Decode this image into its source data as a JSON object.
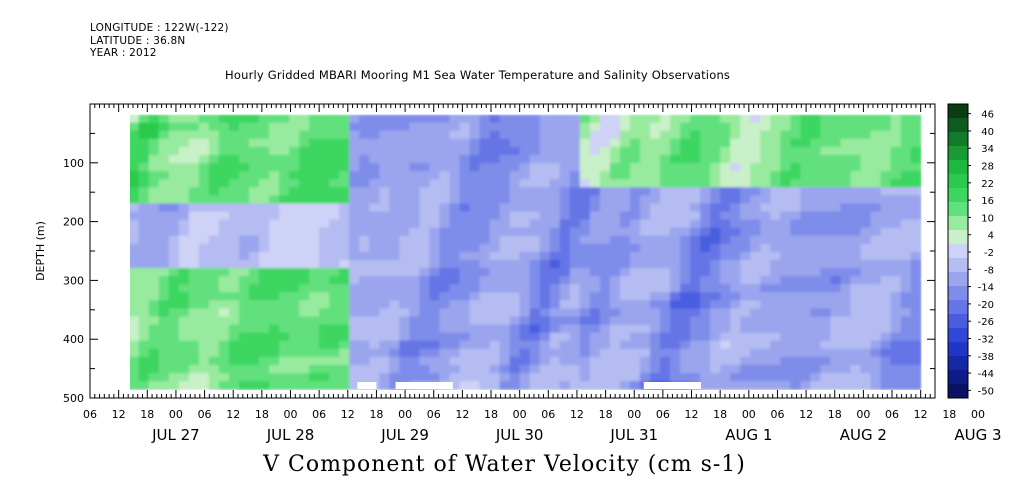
{
  "header": {
    "longitude": "LONGITUDE : 122W(-122)",
    "latitude": "LATITUDE : 36.8N",
    "year": "YEAR : 2012"
  },
  "chart_title": "Hourly Gridded MBARI Mooring M1 Sea Water Temperature and Salinity Observations",
  "variable_title": "V Component of Water Velocity (cm s-1)",
  "chart_data": {
    "type": "heatmap",
    "title": "Hourly Gridded MBARI Mooring M1 Sea Water Temperature and Salinity Observations",
    "xlabel": "",
    "ylabel": "DEPTH (m)",
    "ylim": [
      500,
      0
    ],
    "y_ticks": [
      100,
      200,
      300,
      400,
      500
    ],
    "y_tick_labels": [
      "100",
      "200",
      "300",
      "400",
      "500"
    ],
    "x_range_hours": [
      -18,
      159
    ],
    "x_hour_tick_labels": [
      "06",
      "12",
      "18",
      "00",
      "06",
      "12",
      "18",
      "00",
      "06",
      "12",
      "18",
      "00",
      "06",
      "12",
      "18",
      "00",
      "06",
      "12",
      "18",
      "00",
      "06",
      "12",
      "18",
      "00",
      "06",
      "12",
      "18",
      "00",
      "06",
      "12",
      "18",
      "00"
    ],
    "x_day_labels": [
      "JUL 27",
      "JUL 28",
      "JUL 29",
      "JUL 30",
      "JUL 31",
      "AUG  1",
      "AUG  2",
      "AUG  3"
    ],
    "data_depth_range": [
      18,
      485
    ],
    "colorbar": {
      "levels": [
        46,
        40,
        34,
        28,
        22,
        16,
        10,
        4,
        -2,
        -8,
        -14,
        -20,
        -26,
        -32,
        -38,
        -44,
        -50
      ],
      "labels": [
        "46",
        "40",
        "34",
        "28",
        "22",
        "16",
        "10",
        "4",
        "-2",
        "-8",
        "-14",
        "-20",
        "-26",
        "-32",
        "-38",
        "-44",
        "-50"
      ],
      "colors": [
        "#0a3c14",
        "#0f5a1e",
        "#137a2a",
        "#189a34",
        "#1eb83e",
        "#2acb4c",
        "#3ed660",
        "#62e07e",
        "#98ea9e",
        "#c9f0c8",
        "#cdd2f6",
        "#b4bcf2",
        "#9aa5ee",
        "#7f8dea",
        "#6575e6",
        "#4a5ddf",
        "#3148d6",
        "#2136c6",
        "#1728a6",
        "#101c86",
        "#0a1266"
      ]
    },
    "bands": [
      {
        "day": "JUL 27",
        "surface": "green (4 to 16)",
        "mid": "blue (-2 to -14)",
        "deep": "green (4 to 16)"
      },
      {
        "day": "JUL 28",
        "surface": "green (10 to 22)",
        "mid": "blue (-8 to -20)",
        "deep": "green (4 to 16)"
      },
      {
        "day": "JUL 29",
        "surface": "blue (-2 to -14)",
        "mid": "blue (-14 to -26)",
        "deep": "blue (-8 to -20)"
      },
      {
        "day": "JUL 30",
        "surface": "blue (-8 to -20)",
        "mid": "blue (-14 to -26)",
        "deep": "blue (-8 to -20)"
      },
      {
        "day": "JUL 31",
        "surface": "green (4 to 10)",
        "mid": "blue (-8 to -20)",
        "deep": "blue (-8 to -14)"
      },
      {
        "day": "AUG  1",
        "surface": "green (4 to 16)",
        "mid": "blue (-14 to -26)",
        "deep": "blue (-14 to -20)"
      },
      {
        "day": "AUG  2",
        "surface": "green (4 to 16)",
        "mid": "blue (-14 to -26)",
        "deep": "blue (-8 to -20)"
      }
    ]
  }
}
